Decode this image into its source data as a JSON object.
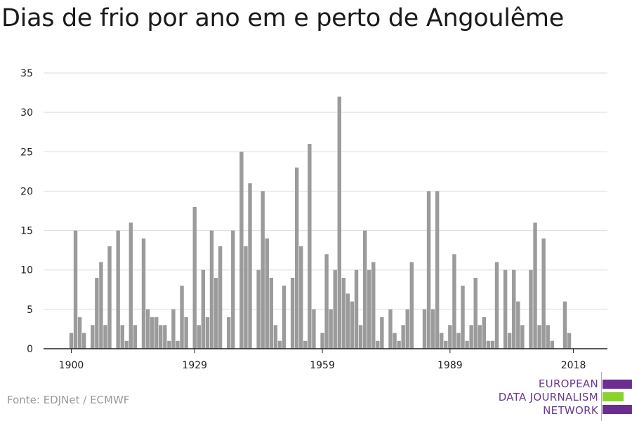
{
  "title": "Dias de frio por ano em e perto de Angoulême",
  "source": "Fonte: EDJNet / ECMWF",
  "logo": {
    "line1": "EUROPEAN",
    "line2": "DATA JOURNALISM",
    "line3": "NETWORK",
    "color_purple": "#6b2d90",
    "color_green": "#8cd12c"
  },
  "chart_data": {
    "type": "bar",
    "bar_color": "#9b9b9b",
    "grid": true,
    "ylim": [
      0,
      35
    ],
    "yticks": [
      0,
      5,
      10,
      15,
      20,
      25,
      30,
      35
    ],
    "xticks": [
      1900,
      1929,
      1959,
      1989,
      2018
    ],
    "x": [
      1900,
      1901,
      1902,
      1903,
      1904,
      1905,
      1906,
      1907,
      1908,
      1909,
      1910,
      1911,
      1912,
      1913,
      1914,
      1915,
      1916,
      1917,
      1918,
      1919,
      1920,
      1921,
      1922,
      1923,
      1924,
      1925,
      1926,
      1927,
      1928,
      1929,
      1930,
      1931,
      1932,
      1933,
      1934,
      1935,
      1936,
      1937,
      1938,
      1939,
      1940,
      1941,
      1942,
      1943,
      1944,
      1945,
      1946,
      1947,
      1948,
      1949,
      1950,
      1951,
      1952,
      1953,
      1954,
      1955,
      1956,
      1957,
      1958,
      1959,
      1960,
      1961,
      1962,
      1963,
      1964,
      1965,
      1966,
      1967,
      1968,
      1969,
      1970,
      1971,
      1972,
      1973,
      1974,
      1975,
      1976,
      1977,
      1978,
      1979,
      1980,
      1981,
      1982,
      1983,
      1984,
      1985,
      1986,
      1987,
      1988,
      1989,
      1990,
      1991,
      1992,
      1993,
      1994,
      1995,
      1996,
      1997,
      1998,
      1999,
      2000,
      2001,
      2002,
      2003,
      2004,
      2005,
      2006,
      2007,
      2008,
      2009,
      2010,
      2011,
      2012,
      2013,
      2014,
      2015,
      2016,
      2017,
      2018,
      2019
    ],
    "values": [
      2,
      15,
      4,
      2,
      0,
      3,
      9,
      11,
      3,
      13,
      0,
      15,
      3,
      1,
      16,
      3,
      0,
      14,
      5,
      4,
      4,
      3,
      3,
      1,
      5,
      1,
      8,
      4,
      0,
      18,
      3,
      10,
      4,
      15,
      9,
      13,
      0,
      4,
      15,
      0,
      25,
      13,
      21,
      0,
      10,
      20,
      14,
      9,
      3,
      1,
      8,
      0,
      9,
      23,
      13,
      1,
      26,
      5,
      0,
      2,
      12,
      5,
      10,
      32,
      9,
      7,
      6,
      10,
      3,
      15,
      10,
      11,
      1,
      4,
      0,
      5,
      2,
      1,
      3,
      5,
      11,
      0,
      0,
      5,
      20,
      5,
      20,
      2,
      1,
      3,
      12,
      2,
      8,
      1,
      3,
      9,
      3,
      4,
      1,
      1,
      11,
      0,
      10,
      2,
      10,
      6,
      3,
      0,
      10,
      16,
      3,
      14,
      3,
      1,
      0,
      0,
      6,
      2,
      0,
      0
    ]
  }
}
